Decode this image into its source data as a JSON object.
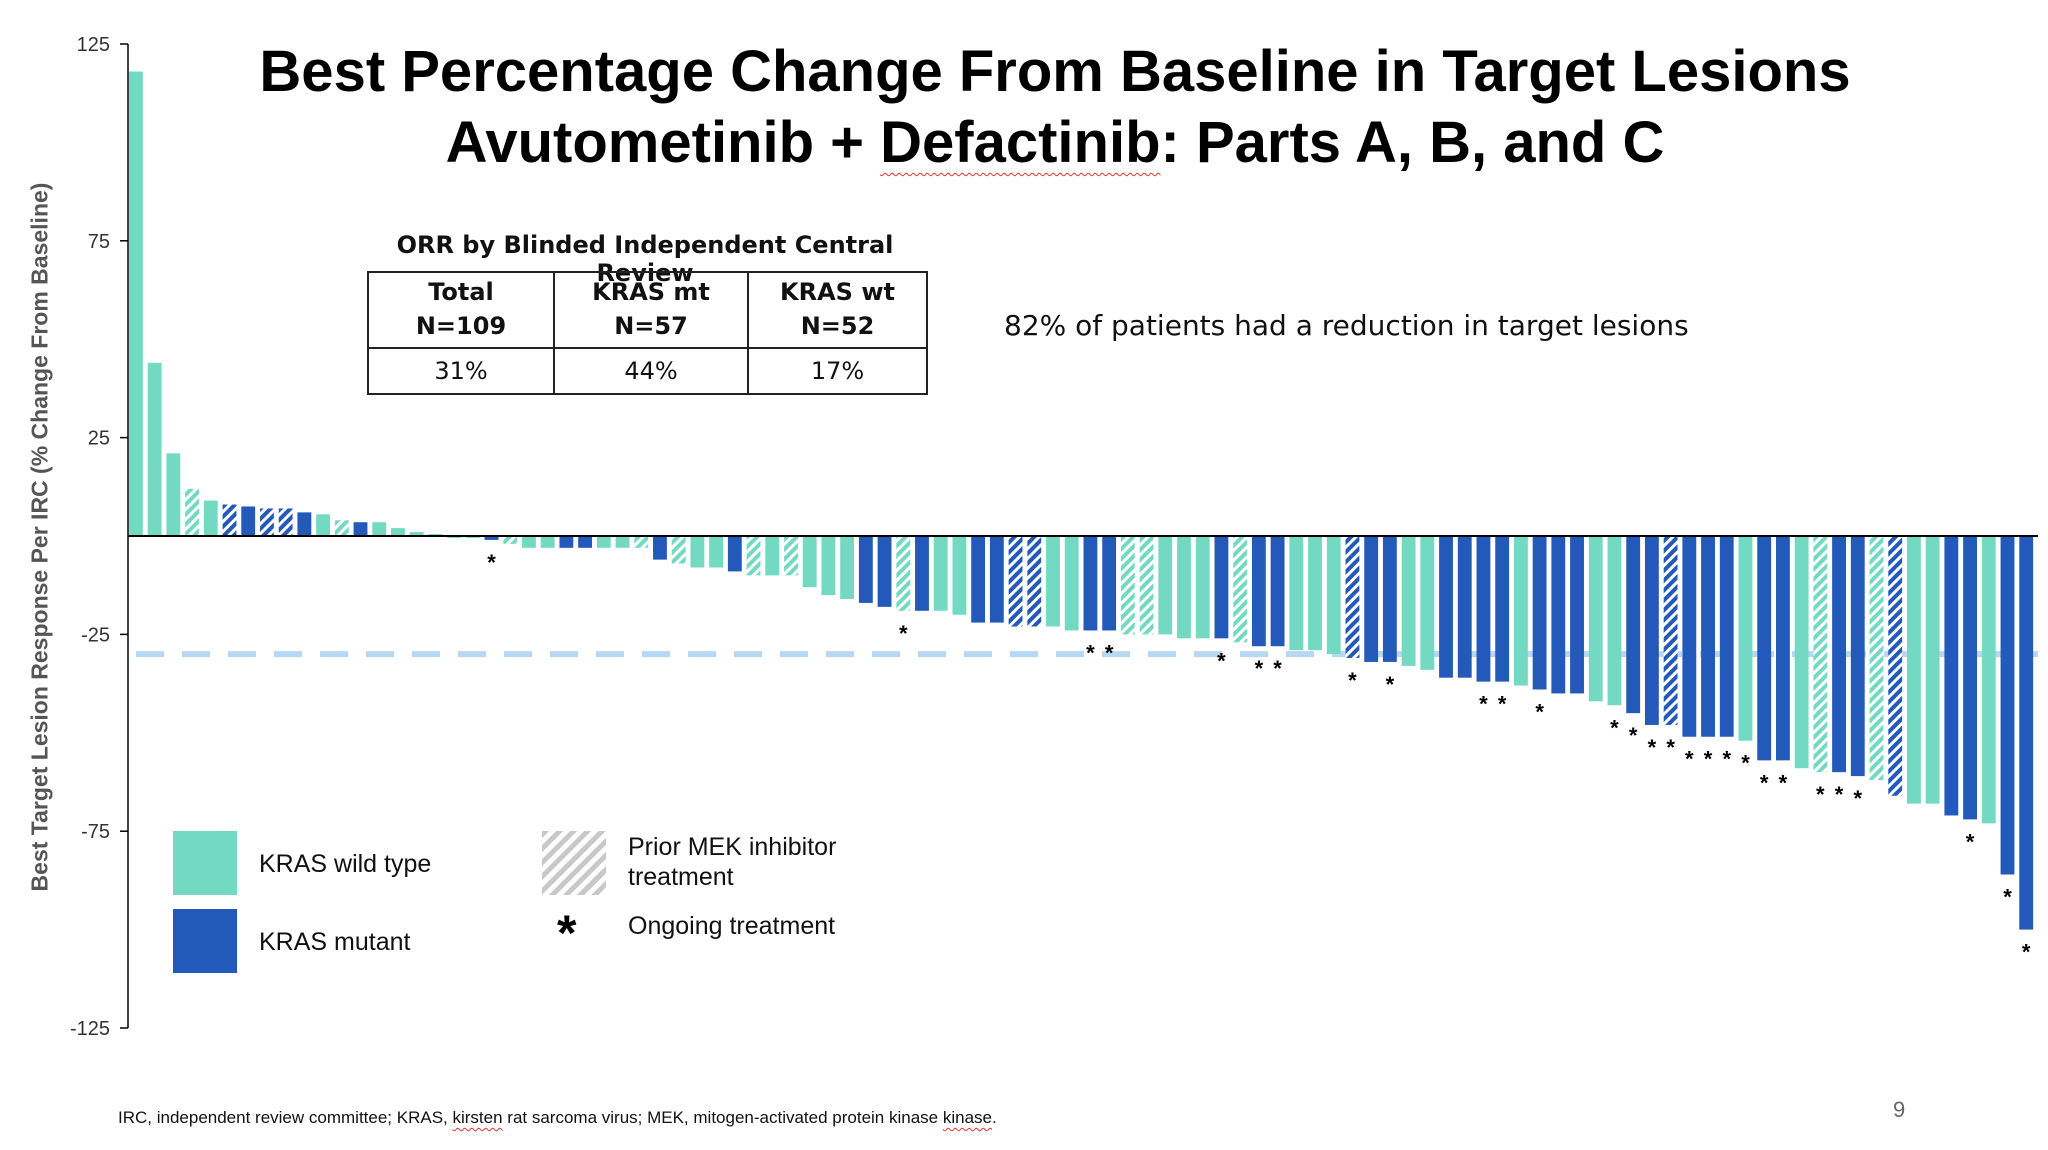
{
  "title": {
    "line1": "Best Percentage Change From Baseline in Target Lesions",
    "line2_part1": "Avutometinib + ",
    "line2_part2": "Defactinib",
    "line2_part3": ": Parts A, B, and C"
  },
  "orr_table": {
    "caption": "ORR by Blinded Independent Central Review",
    "columns": [
      {
        "name": "Total",
        "n": "N=109",
        "value": "31%"
      },
      {
        "name": "KRAS mt",
        "n": "N=57",
        "value": "44%"
      },
      {
        "name": "KRAS wt",
        "n": "N=52",
        "value": "17%"
      }
    ]
  },
  "callout": "82% of patients had a reduction in target lesions",
  "legend": {
    "wild_type": "KRAS wild type",
    "mutant": "KRAS mutant",
    "prior_mek_line1": "Prior MEK inhibitor",
    "prior_mek_line2": "treatment",
    "ongoing_symbol": "*",
    "ongoing": "Ongoing treatment"
  },
  "footnote": {
    "part1": "IRC, independent review committee; KRAS, ",
    "part2": "kirsten",
    "part3": " rat sarcoma virus; MEK, mitogen-activated protein kinase ",
    "part4": "kinase",
    "part5": "."
  },
  "page_number": "9",
  "colors": {
    "wild_type": "#74d9c2",
    "mutant": "#2359b8",
    "hatch": "#ffffff",
    "reference_line": "#b7d7f2"
  },
  "chart_data": {
    "type": "bar",
    "ylabel": "Best Target Lesion Response Per IRC (% Change From Baseline)",
    "ylim": [
      -125,
      125
    ],
    "yticks": [
      125,
      75,
      25,
      -25,
      -75,
      -125
    ],
    "reference_line": -30,
    "series": [
      {
        "name": "KRAS wild type"
      },
      {
        "name": "KRAS mutant"
      }
    ],
    "bars": [
      {
        "v": 118,
        "t": "wt",
        "h": 0,
        "o": 0
      },
      {
        "v": 44,
        "t": "wt",
        "h": 0,
        "o": 0
      },
      {
        "v": 21,
        "t": "wt",
        "h": 0,
        "o": 0
      },
      {
        "v": 12,
        "t": "wt",
        "h": 1,
        "o": 0
      },
      {
        "v": 9,
        "t": "wt",
        "h": 0,
        "o": 0
      },
      {
        "v": 8,
        "t": "mt",
        "h": 1,
        "o": 0
      },
      {
        "v": 7.5,
        "t": "mt",
        "h": 0,
        "o": 0
      },
      {
        "v": 7,
        "t": "mt",
        "h": 1,
        "o": 0
      },
      {
        "v": 7,
        "t": "mt",
        "h": 1,
        "o": 0
      },
      {
        "v": 6,
        "t": "mt",
        "h": 0,
        "o": 0
      },
      {
        "v": 5.5,
        "t": "wt",
        "h": 0,
        "o": 0
      },
      {
        "v": 4,
        "t": "wt",
        "h": 1,
        "o": 0
      },
      {
        "v": 3.5,
        "t": "mt",
        "h": 0,
        "o": 0
      },
      {
        "v": 3.5,
        "t": "wt",
        "h": 0,
        "o": 0
      },
      {
        "v": 2,
        "t": "wt",
        "h": 0,
        "o": 0
      },
      {
        "v": 1,
        "t": "wt",
        "h": 0,
        "o": 0
      },
      {
        "v": 0.5,
        "t": "wt",
        "h": 0,
        "o": 0
      },
      {
        "v": -0.5,
        "t": "wt",
        "h": 0,
        "o": 0
      },
      {
        "v": -0.5,
        "t": "wt",
        "h": 0,
        "o": 0
      },
      {
        "v": -1,
        "t": "mt",
        "h": 0,
        "o": 1
      },
      {
        "v": -2,
        "t": "wt",
        "h": 1,
        "o": 0
      },
      {
        "v": -3,
        "t": "wt",
        "h": 0,
        "o": 0
      },
      {
        "v": -3,
        "t": "wt",
        "h": 0,
        "o": 0
      },
      {
        "v": -3,
        "t": "mt",
        "h": 0,
        "o": 0
      },
      {
        "v": -3,
        "t": "mt",
        "h": 0,
        "o": 0
      },
      {
        "v": -3,
        "t": "wt",
        "h": 0,
        "o": 0
      },
      {
        "v": -3,
        "t": "wt",
        "h": 0,
        "o": 0
      },
      {
        "v": -3,
        "t": "wt",
        "h": 1,
        "o": 0
      },
      {
        "v": -6,
        "t": "mt",
        "h": 0,
        "o": 0
      },
      {
        "v": -7,
        "t": "wt",
        "h": 1,
        "o": 0
      },
      {
        "v": -8,
        "t": "wt",
        "h": 0,
        "o": 0
      },
      {
        "v": -8,
        "t": "wt",
        "h": 0,
        "o": 0
      },
      {
        "v": -9,
        "t": "mt",
        "h": 0,
        "o": 0
      },
      {
        "v": -10,
        "t": "wt",
        "h": 1,
        "o": 0
      },
      {
        "v": -10,
        "t": "wt",
        "h": 0,
        "o": 0
      },
      {
        "v": -10,
        "t": "wt",
        "h": 1,
        "o": 0
      },
      {
        "v": -13,
        "t": "wt",
        "h": 0,
        "o": 0
      },
      {
        "v": -15,
        "t": "wt",
        "h": 0,
        "o": 0
      },
      {
        "v": -16,
        "t": "wt",
        "h": 0,
        "o": 0
      },
      {
        "v": -17,
        "t": "mt",
        "h": 0,
        "o": 0
      },
      {
        "v": -18,
        "t": "mt",
        "h": 0,
        "o": 0
      },
      {
        "v": -19,
        "t": "wt",
        "h": 1,
        "o": 1
      },
      {
        "v": -19,
        "t": "mt",
        "h": 0,
        "o": 0
      },
      {
        "v": -19,
        "t": "wt",
        "h": 0,
        "o": 0
      },
      {
        "v": -20,
        "t": "wt",
        "h": 0,
        "o": 0
      },
      {
        "v": -22,
        "t": "mt",
        "h": 0,
        "o": 0
      },
      {
        "v": -22,
        "t": "mt",
        "h": 0,
        "o": 0
      },
      {
        "v": -23,
        "t": "mt",
        "h": 1,
        "o": 0
      },
      {
        "v": -23,
        "t": "mt",
        "h": 1,
        "o": 0
      },
      {
        "v": -23,
        "t": "wt",
        "h": 0,
        "o": 0
      },
      {
        "v": -24,
        "t": "wt",
        "h": 0,
        "o": 0
      },
      {
        "v": -24,
        "t": "mt",
        "h": 0,
        "o": 1
      },
      {
        "v": -24,
        "t": "mt",
        "h": 0,
        "o": 1
      },
      {
        "v": -25,
        "t": "wt",
        "h": 1,
        "o": 0
      },
      {
        "v": -25,
        "t": "wt",
        "h": 1,
        "o": 0
      },
      {
        "v": -25,
        "t": "wt",
        "h": 0,
        "o": 0
      },
      {
        "v": -26,
        "t": "wt",
        "h": 0,
        "o": 0
      },
      {
        "v": -26,
        "t": "wt",
        "h": 0,
        "o": 0
      },
      {
        "v": -26,
        "t": "mt",
        "h": 0,
        "o": 1
      },
      {
        "v": -27,
        "t": "wt",
        "h": 1,
        "o": 0
      },
      {
        "v": -28,
        "t": "mt",
        "h": 0,
        "o": 1
      },
      {
        "v": -28,
        "t": "mt",
        "h": 0,
        "o": 1
      },
      {
        "v": -29,
        "t": "wt",
        "h": 0,
        "o": 0
      },
      {
        "v": -29,
        "t": "wt",
        "h": 0,
        "o": 0
      },
      {
        "v": -30,
        "t": "wt",
        "h": 0,
        "o": 0
      },
      {
        "v": -31,
        "t": "mt",
        "h": 1,
        "o": 1
      },
      {
        "v": -32,
        "t": "mt",
        "h": 0,
        "o": 0
      },
      {
        "v": -32,
        "t": "mt",
        "h": 0,
        "o": 1
      },
      {
        "v": -33,
        "t": "wt",
        "h": 0,
        "o": 0
      },
      {
        "v": -34,
        "t": "wt",
        "h": 0,
        "o": 0
      },
      {
        "v": -36,
        "t": "mt",
        "h": 0,
        "o": 0
      },
      {
        "v": -36,
        "t": "mt",
        "h": 0,
        "o": 0
      },
      {
        "v": -37,
        "t": "mt",
        "h": 0,
        "o": 1
      },
      {
        "v": -37,
        "t": "mt",
        "h": 0,
        "o": 1
      },
      {
        "v": -38,
        "t": "wt",
        "h": 0,
        "o": 0
      },
      {
        "v": -39,
        "t": "mt",
        "h": 0,
        "o": 1
      },
      {
        "v": -40,
        "t": "mt",
        "h": 0,
        "o": 0
      },
      {
        "v": -40,
        "t": "mt",
        "h": 0,
        "o": 0
      },
      {
        "v": -42,
        "t": "wt",
        "h": 0,
        "o": 0
      },
      {
        "v": -43,
        "t": "wt",
        "h": 0,
        "o": 1
      },
      {
        "v": -45,
        "t": "mt",
        "h": 0,
        "o": 1
      },
      {
        "v": -48,
        "t": "mt",
        "h": 0,
        "o": 1
      },
      {
        "v": -48,
        "t": "mt",
        "h": 1,
        "o": 1
      },
      {
        "v": -51,
        "t": "mt",
        "h": 0,
        "o": 1
      },
      {
        "v": -51,
        "t": "mt",
        "h": 0,
        "o": 1
      },
      {
        "v": -51,
        "t": "mt",
        "h": 0,
        "o": 1
      },
      {
        "v": -52,
        "t": "wt",
        "h": 0,
        "o": 1
      },
      {
        "v": -57,
        "t": "mt",
        "h": 0,
        "o": 1
      },
      {
        "v": -57,
        "t": "mt",
        "h": 0,
        "o": 1
      },
      {
        "v": -59,
        "t": "wt",
        "h": 0,
        "o": 0
      },
      {
        "v": -60,
        "t": "wt",
        "h": 1,
        "o": 1
      },
      {
        "v": -60,
        "t": "mt",
        "h": 0,
        "o": 1
      },
      {
        "v": -61,
        "t": "mt",
        "h": 0,
        "o": 1
      },
      {
        "v": -62,
        "t": "wt",
        "h": 1,
        "o": 0
      },
      {
        "v": -66,
        "t": "mt",
        "h": 1,
        "o": 0
      },
      {
        "v": -68,
        "t": "wt",
        "h": 0,
        "o": 0
      },
      {
        "v": -68,
        "t": "wt",
        "h": 0,
        "o": 0
      },
      {
        "v": -71,
        "t": "mt",
        "h": 0,
        "o": 0
      },
      {
        "v": -72,
        "t": "mt",
        "h": 0,
        "o": 1
      },
      {
        "v": -73,
        "t": "wt",
        "h": 0,
        "o": 0
      },
      {
        "v": -86,
        "t": "mt",
        "h": 0,
        "o": 1
      },
      {
        "v": -100,
        "t": "mt",
        "h": 0,
        "o": 1
      }
    ]
  }
}
